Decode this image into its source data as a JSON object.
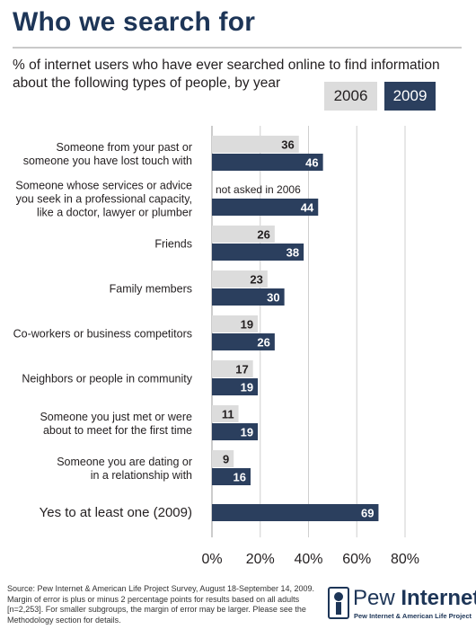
{
  "header": {
    "title": "Who we search for",
    "subtitle": "% of internet users who have ever searched online to find information about the following types of people, by year"
  },
  "legend": {
    "items": [
      {
        "label": "2006",
        "color": "#dcdcdc"
      },
      {
        "label": "2009",
        "color": "#2b3f5e"
      }
    ],
    "placement": "top-right"
  },
  "chart_data": {
    "type": "bar",
    "orientation": "horizontal",
    "categories": [
      [
        "Someone from your past or",
        "someone you have lost touch with"
      ],
      [
        "Someone whose services or advice",
        "you seek in a professional capacity,",
        "like a doctor, lawyer or plumber"
      ],
      [
        "Friends"
      ],
      [
        "Family members"
      ],
      [
        "Co-workers or business competitors"
      ],
      [
        "Neighbors or people in community"
      ],
      [
        "Someone you just met or were",
        "about to meet for the first time"
      ],
      [
        "Someone you are dating or",
        "in a relationship with"
      ],
      [
        "Yes to at least one (2009)"
      ]
    ],
    "series": [
      {
        "name": "2006",
        "values": [
          36,
          null,
          26,
          23,
          19,
          17,
          11,
          9,
          null
        ]
      },
      {
        "name": "2009",
        "values": [
          46,
          44,
          38,
          30,
          26,
          19,
          19,
          16,
          69
        ]
      }
    ],
    "annotations": [
      {
        "category_index": 1,
        "series": "2006",
        "text": "not asked in 2006"
      }
    ],
    "xlim": [
      0,
      80
    ],
    "ticks": [
      0,
      20,
      40,
      60,
      80
    ],
    "tick_labels": [
      "0%",
      "20%",
      "40%",
      "60%",
      "80%"
    ],
    "grid": true
  },
  "footer": {
    "source": "Source: Pew Internet & American Life Project Survey, August 18-September 14, 2009. Margin of error is plus or minus 2 percentage points for results based on all adults [n=2,253]. For smaller subgroups, the margin of error may be larger. Please see the Methodology section for details."
  },
  "logo": {
    "name_regular": "Pew",
    "name_bold": "Internet",
    "tagline": "Pew Internet & American Life Project"
  }
}
